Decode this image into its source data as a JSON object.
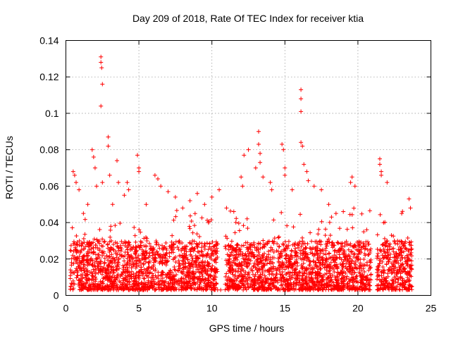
{
  "chart_data": {
    "type": "scatter",
    "title": "Day 209 of 2018, Rate Of TEC Index for receiver ktia",
    "xlabel": "GPS time / hours",
    "ylabel": "ROTI / TECUs",
    "xlim": [
      0,
      25
    ],
    "ylim": [
      0,
      0.14
    ],
    "xticks": [
      0,
      5,
      10,
      15,
      20,
      25
    ],
    "yticks": [
      0,
      0.02,
      0.04,
      0.06,
      0.08,
      0.1,
      0.12,
      0.14
    ],
    "xtick_labels": [
      "0",
      "5",
      "10",
      "15",
      "20",
      "25"
    ],
    "ytick_labels": [
      "0",
      "0.02",
      "0.04",
      "0.06",
      "0.08",
      "0.1",
      "0.12",
      "0.14"
    ],
    "grid": true,
    "marker": "+",
    "marker_color": "#ff0000",
    "series": [
      {
        "name": "ROTI",
        "dense_hour_ranges": [
          [
            0.3,
            20.9
          ],
          [
            21.3,
            23.7
          ]
        ],
        "sparse_gaps": [
          [
            10.4,
            10.9
          ],
          [
            20.9,
            21.3
          ]
        ],
        "typical_range": [
          0.003,
          0.03
        ],
        "points": [
          [
            0.5,
            0.068
          ],
          [
            0.6,
            0.066
          ],
          [
            0.7,
            0.062
          ],
          [
            0.9,
            0.058
          ],
          [
            1.2,
            0.045
          ],
          [
            1.5,
            0.05
          ],
          [
            1.8,
            0.08
          ],
          [
            1.9,
            0.076
          ],
          [
            2.0,
            0.07
          ],
          [
            2.1,
            0.06
          ],
          [
            2.4,
            0.131
          ],
          [
            2.4,
            0.128
          ],
          [
            2.45,
            0.125
          ],
          [
            2.5,
            0.116
          ],
          [
            2.4,
            0.104
          ],
          [
            2.5,
            0.062
          ],
          [
            2.9,
            0.087
          ],
          [
            2.9,
            0.082
          ],
          [
            3.0,
            0.066
          ],
          [
            3.2,
            0.05
          ],
          [
            3.5,
            0.074
          ],
          [
            3.6,
            0.062
          ],
          [
            4.0,
            0.055
          ],
          [
            4.2,
            0.062
          ],
          [
            4.3,
            0.058
          ],
          [
            4.9,
            0.077
          ],
          [
            5.0,
            0.07
          ],
          [
            5.0,
            0.068
          ],
          [
            5.5,
            0.05
          ],
          [
            6.1,
            0.066
          ],
          [
            6.3,
            0.064
          ],
          [
            6.5,
            0.06
          ],
          [
            7.0,
            0.057
          ],
          [
            7.5,
            0.054
          ],
          [
            8.0,
            0.048
          ],
          [
            8.5,
            0.052
          ],
          [
            9.0,
            0.056
          ],
          [
            9.5,
            0.05
          ],
          [
            10.0,
            0.054
          ],
          [
            10.5,
            0.058
          ],
          [
            10.6,
            0.003
          ],
          [
            11.0,
            0.048
          ],
          [
            11.5,
            0.046
          ],
          [
            12.0,
            0.065
          ],
          [
            12.1,
            0.06
          ],
          [
            12.2,
            0.077
          ],
          [
            12.5,
            0.08
          ],
          [
            13.0,
            0.07
          ],
          [
            13.2,
            0.09
          ],
          [
            13.2,
            0.083
          ],
          [
            13.3,
            0.078
          ],
          [
            13.3,
            0.073
          ],
          [
            13.5,
            0.065
          ],
          [
            14.0,
            0.062
          ],
          [
            14.1,
            0.058
          ],
          [
            14.8,
            0.083
          ],
          [
            14.9,
            0.08
          ],
          [
            15.0,
            0.07
          ],
          [
            15.0,
            0.066
          ],
          [
            15.5,
            0.058
          ],
          [
            16.1,
            0.113
          ],
          [
            16.1,
            0.108
          ],
          [
            16.1,
            0.101
          ],
          [
            16.1,
            0.084
          ],
          [
            16.2,
            0.082
          ],
          [
            16.3,
            0.072
          ],
          [
            16.5,
            0.068
          ],
          [
            16.6,
            0.063
          ],
          [
            17.0,
            0.06
          ],
          [
            17.5,
            0.058
          ],
          [
            18.0,
            0.05
          ],
          [
            18.5,
            0.045
          ],
          [
            19.0,
            0.046
          ],
          [
            19.5,
            0.062
          ],
          [
            19.6,
            0.065
          ],
          [
            19.8,
            0.06
          ],
          [
            20.1,
            0.028
          ],
          [
            20.5,
            0.022
          ],
          [
            21.5,
            0.075
          ],
          [
            21.5,
            0.072
          ],
          [
            21.6,
            0.068
          ],
          [
            21.6,
            0.066
          ],
          [
            22.0,
            0.062
          ],
          [
            22.5,
            0.03
          ],
          [
            23.0,
            0.045
          ],
          [
            23.5,
            0.053
          ],
          [
            23.6,
            0.048
          ]
        ]
      }
    ]
  }
}
